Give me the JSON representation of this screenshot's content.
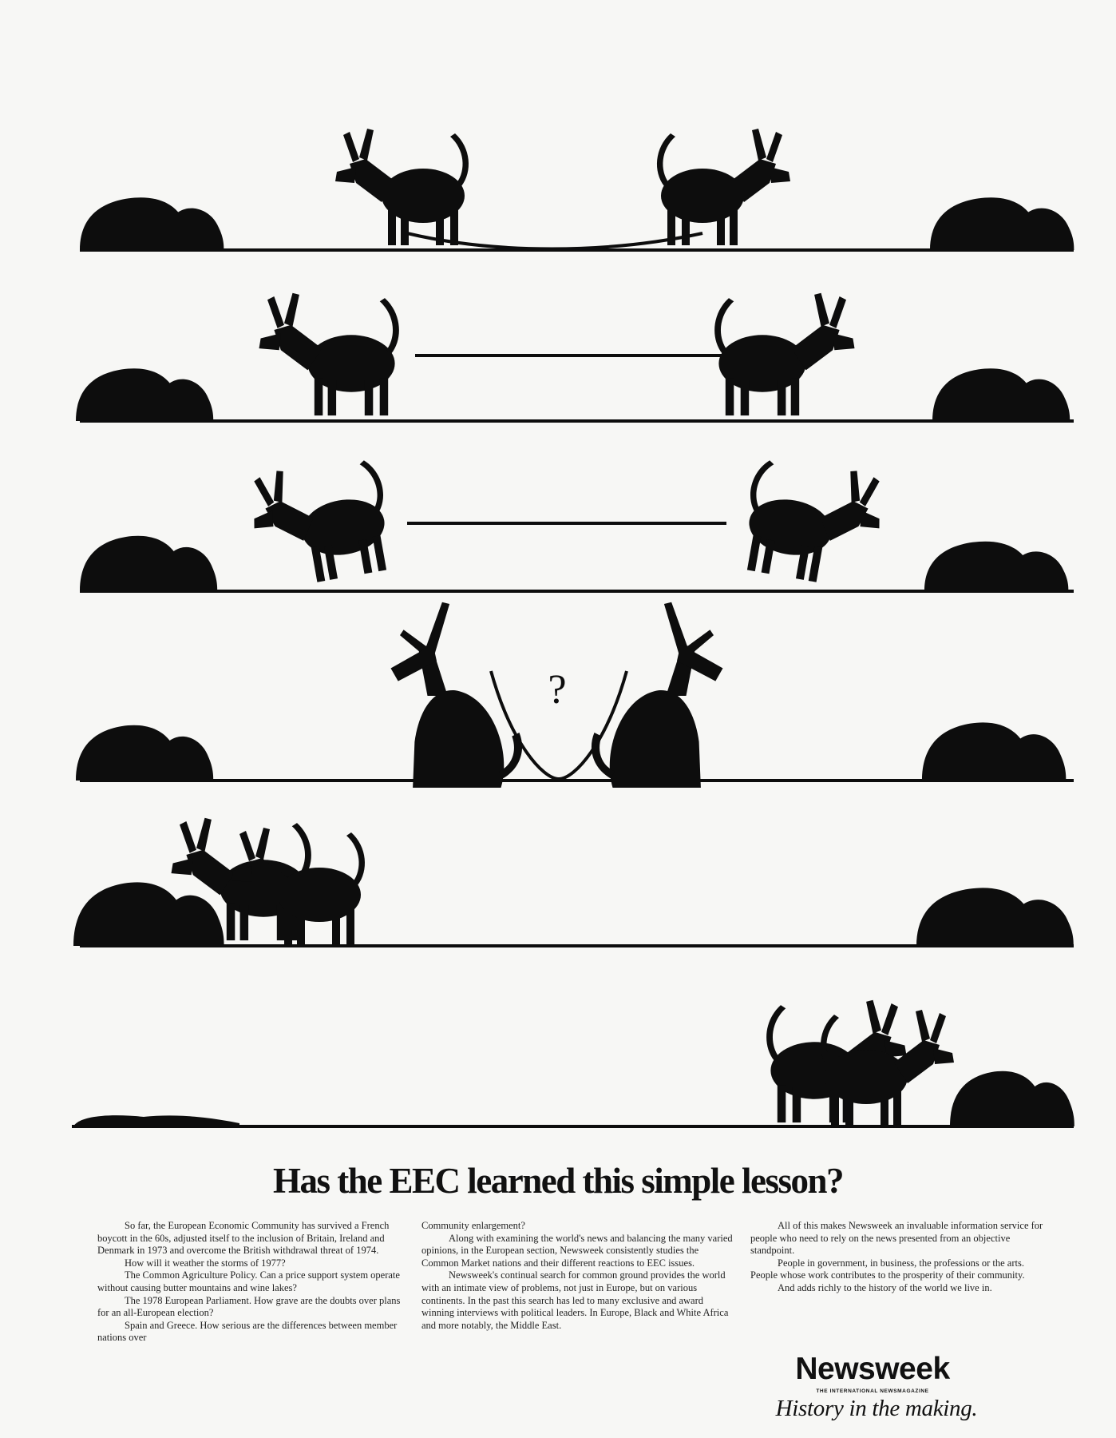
{
  "cartoon": {
    "panels": [
      {
        "scene": "two-donkeys-tied-together-straining-apart"
      },
      {
        "scene": "donkeys-pulling-apart-rope-taut"
      },
      {
        "scene": "donkeys-leaping-apart-rope-stretched"
      },
      {
        "scene": "donkeys-sitting-facing-each-other"
      },
      {
        "scene": "donkeys-eating-together-at-left-haystack"
      },
      {
        "scene": "donkeys-eating-together-at-right-haystack"
      }
    ],
    "question_mark": "?",
    "ink_color": "#0d0d0d"
  },
  "headline": "Has the EEC learned this simple lesson?",
  "body": {
    "column1": [
      "So far, the European Economic Community has survived a French boycott in the 60s, adjusted itself to the inclusion of Britain, Ireland and Denmark in 1973 and overcome the British withdrawal threat of 1974.",
      "How will it weather the storms of 1977?",
      "The Common Agriculture Policy. Can a price support system operate without causing butter mountains and wine lakes?",
      "The 1978 European Parliament. How grave are the doubts over plans for an all-European election?",
      "Spain and Greece. How serious are the differences between member nations over"
    ],
    "column2": [
      "Community enlargement?",
      "Along with examining the world's news and balancing the many varied opinions, in the European section, Newsweek consistently studies the Common Market nations and their different reactions to EEC issues.",
      "Newsweek's continual search for common ground provides the world with an intimate view of problems, not just in Europe, but on various continents. In the past this search has led to many exclusive and award winning interviews with political leaders. In Europe, Black and White Africa and more notably, the Middle East."
    ],
    "column3": [
      "All of this makes Newsweek an invaluable information service for people who need to rely on the news presented from an objective standpoint.",
      "People in government, in business, the professions or the arts. People whose work contributes to the prosperity of their community.",
      "And adds richly to the history of the world we live in."
    ]
  },
  "brand": {
    "logo": "Newsweek",
    "subtitle": "THE INTERNATIONAL NEWSMAGAZINE",
    "tagline": "History in the making."
  }
}
